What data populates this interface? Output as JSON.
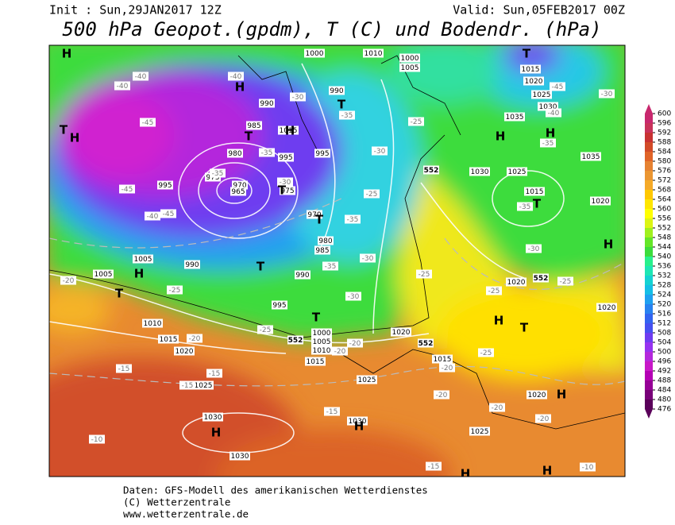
{
  "header": {
    "init": "Init : Sun,29JAN2017 12Z",
    "valid": "Valid: Sun,05FEB2017 00Z",
    "title": "500 hPa Geopot.(gpdm), T (C) und Bodendr. (hPa)"
  },
  "footer": {
    "line1": "Daten: GFS-Modell des amerikanischen Wetterdienstes",
    "line2": "(C) Wetterzentrale",
    "line3": "www.wetterzentrale.de"
  },
  "colorbar": {
    "levels": [
      476,
      480,
      484,
      488,
      492,
      496,
      500,
      504,
      508,
      512,
      516,
      520,
      524,
      528,
      532,
      536,
      540,
      544,
      548,
      552,
      556,
      560,
      564,
      568,
      572,
      576,
      580,
      584,
      588,
      592,
      596,
      600
    ],
    "colors": [
      "#5a005a",
      "#780078",
      "#960096",
      "#b400b4",
      "#c818c8",
      "#b428dc",
      "#9632f0",
      "#6e3cf0",
      "#4650f0",
      "#3264f0",
      "#2882f0",
      "#1ea0f0",
      "#14bee6",
      "#14d2d2",
      "#1ee6b4",
      "#28f08c",
      "#3cdc3c",
      "#64e628",
      "#a0f01e",
      "#dcf514",
      "#ffff00",
      "#ffe600",
      "#ffc800",
      "#f5aa28",
      "#eb9632",
      "#e68232",
      "#e06428",
      "#d24b28",
      "#c83232",
      "#c8325a",
      "#c8286e"
    ]
  },
  "map": {
    "pressure_labels": [
      "1000",
      "1010",
      "1000",
      "1005",
      "990",
      "990",
      "985",
      "1015",
      "995",
      "995",
      "980",
      "975",
      "970",
      "965",
      "975",
      "970",
      "980",
      "985",
      "995",
      "1005",
      "1005",
      "990",
      "990",
      "995",
      "1010",
      "1015",
      "1020",
      "1025",
      "1030",
      "1030",
      "1000",
      "1005",
      "1010",
      "1015",
      "1020",
      "1015",
      "1025",
      "1030",
      "1025",
      "1020",
      "1020",
      "1020",
      "1025",
      "1030",
      "1015",
      "1020",
      "1035",
      "1035",
      "1030",
      "1025",
      "1020",
      "1015"
    ],
    "temperature_labels": [
      "-40",
      "-40",
      "-40",
      "-45",
      "-45",
      "-40",
      "-45",
      "-35",
      "-30",
      "-30",
      "-35",
      "-35",
      "-25",
      "-30",
      "-25",
      "-35",
      "-30",
      "-35",
      "-30",
      "-25",
      "-20",
      "-25",
      "-25",
      "-20",
      "-20",
      "-20",
      "-15",
      "-15",
      "-15",
      "-20",
      "-15",
      "-10",
      "-15",
      "-20",
      "-20",
      "-25",
      "-20",
      "-25",
      "-25",
      "-30",
      "-35",
      "-35",
      "-40",
      "-45",
      "-30",
      "-10"
    ],
    "height_labels": [
      "552",
      "552",
      "552",
      "552"
    ],
    "centers": [
      "H",
      "T",
      "H",
      "H",
      "T",
      "H",
      "T",
      "T",
      "T",
      "T",
      "H",
      "T",
      "T",
      "H",
      "H",
      "H",
      "T",
      "T",
      "H",
      "H",
      "H",
      "T",
      "H",
      "H",
      "H"
    ]
  }
}
